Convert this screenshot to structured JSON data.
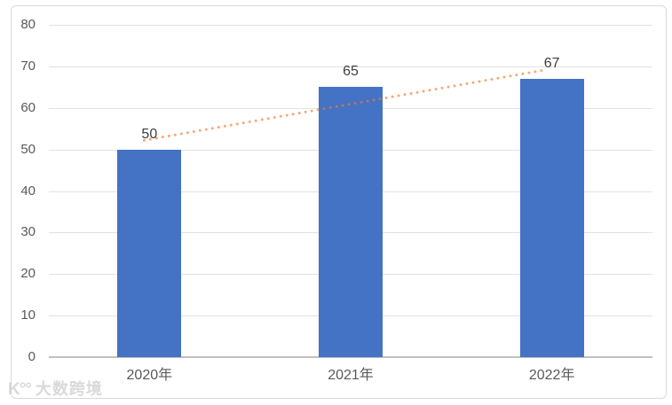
{
  "chart_data": {
    "type": "bar",
    "title": "",
    "categories": [
      "2020年",
      "2021年",
      "2022年"
    ],
    "values": [
      50,
      65,
      67
    ],
    "data_labels": [
      "50",
      "65",
      "67"
    ],
    "xlabel": "",
    "ylabel": "",
    "ylim": [
      0,
      80
    ],
    "yticks": [
      0,
      10,
      20,
      30,
      40,
      50,
      60,
      70,
      80
    ],
    "grid": true,
    "legend": false,
    "bar_color": "#4472C4",
    "axis_text_color": "#595959",
    "data_label_color": "#3F3F3F",
    "gridline_color": "#E2E2E2",
    "axis_line_color": "#C0C0C0",
    "trendline": {
      "type": "linear",
      "style": "dotted",
      "color": "#ED7D31",
      "opacity": 0.65,
      "start_value": 52.2,
      "end_value": 69.2
    }
  },
  "watermark": {
    "logo": "K°°",
    "text": "大数跨境"
  }
}
